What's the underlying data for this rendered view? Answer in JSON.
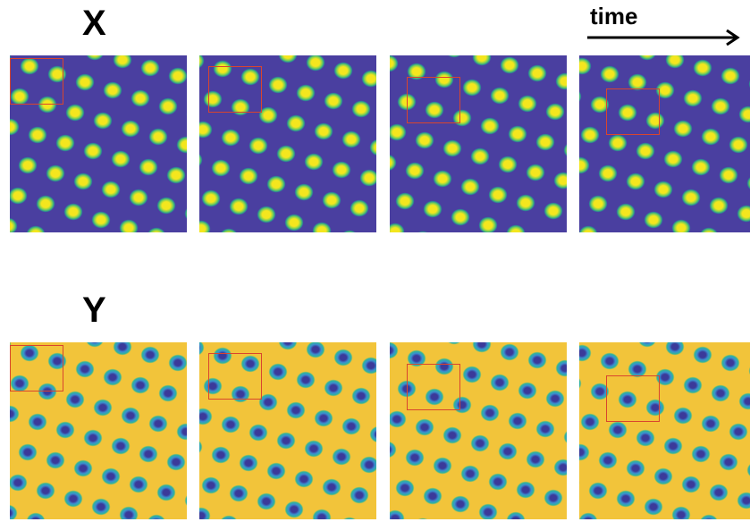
{
  "rows": [
    {
      "label": "X",
      "variable": "X",
      "colors": {
        "background": "#4a3fa0",
        "spot_outer": "#2a9d8f",
        "spot_mid": "#7fd152",
        "spot_core": "#f4e61e"
      },
      "panels": [
        {
          "time_step": 1
        },
        {
          "time_step": 2
        },
        {
          "time_step": 3
        },
        {
          "time_step": 4
        }
      ]
    },
    {
      "label": "Y",
      "variable": "Y",
      "colors": {
        "background": "#f2c43a",
        "spot_outer": "#2fb59a",
        "spot_mid": "#3a8fd0",
        "spot_core": "#3b3a9a"
      },
      "panels": [
        {
          "time_step": 1
        },
        {
          "time_step": 2
        },
        {
          "time_step": 3
        },
        {
          "time_step": 4
        }
      ]
    }
  ],
  "time_axis": {
    "label": "time",
    "direction": "right"
  },
  "colors": {
    "highlight_box": "#d9452e",
    "text": "#000000"
  }
}
